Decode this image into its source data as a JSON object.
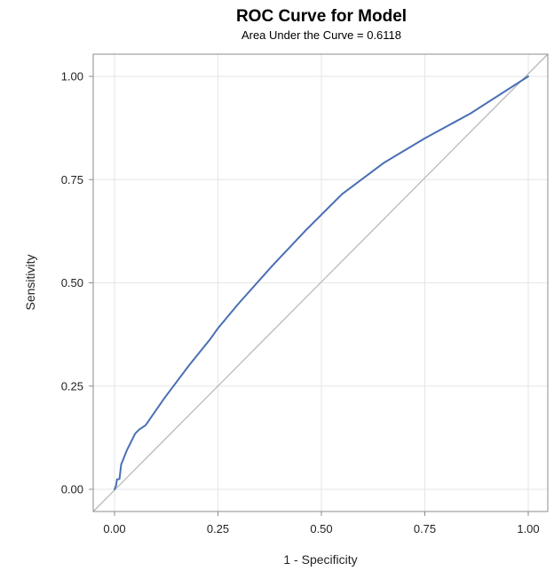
{
  "chart_data": {
    "type": "line",
    "title": "ROC Curve for Model",
    "subtitle": "Area Under the Curve = 0.6118",
    "xlabel": "1 - Specificity",
    "ylabel": "Sensitivity",
    "xlim": [
      0,
      1
    ],
    "ylim": [
      0,
      1
    ],
    "x_ticks": [
      "0.00",
      "0.25",
      "0.50",
      "0.75",
      "1.00"
    ],
    "y_ticks": [
      "0.00",
      "0.25",
      "0.50",
      "0.75",
      "1.00"
    ],
    "grid": true,
    "colors": {
      "roc": "#4a6fb5",
      "reference": "#b8b8b8",
      "grid": "#e6e6e6",
      "frame": "#8c8c8c"
    },
    "series": [
      {
        "x": [
          0.0,
          0.004,
          0.006,
          0.012,
          0.016,
          0.03,
          0.05,
          0.06,
          0.075,
          0.12,
          0.18,
          0.23,
          0.25,
          0.3,
          0.38,
          0.46,
          0.55,
          0.65,
          0.75,
          0.86,
          1.0
        ],
        "y": [
          0.0,
          0.01,
          0.024,
          0.025,
          0.06,
          0.095,
          0.135,
          0.145,
          0.155,
          0.22,
          0.3,
          0.362,
          0.39,
          0.45,
          0.54,
          0.625,
          0.715,
          0.79,
          0.85,
          0.91,
          1.0
        ]
      },
      {
        "x": [
          0,
          1
        ],
        "y": [
          0,
          1
        ]
      }
    ]
  }
}
